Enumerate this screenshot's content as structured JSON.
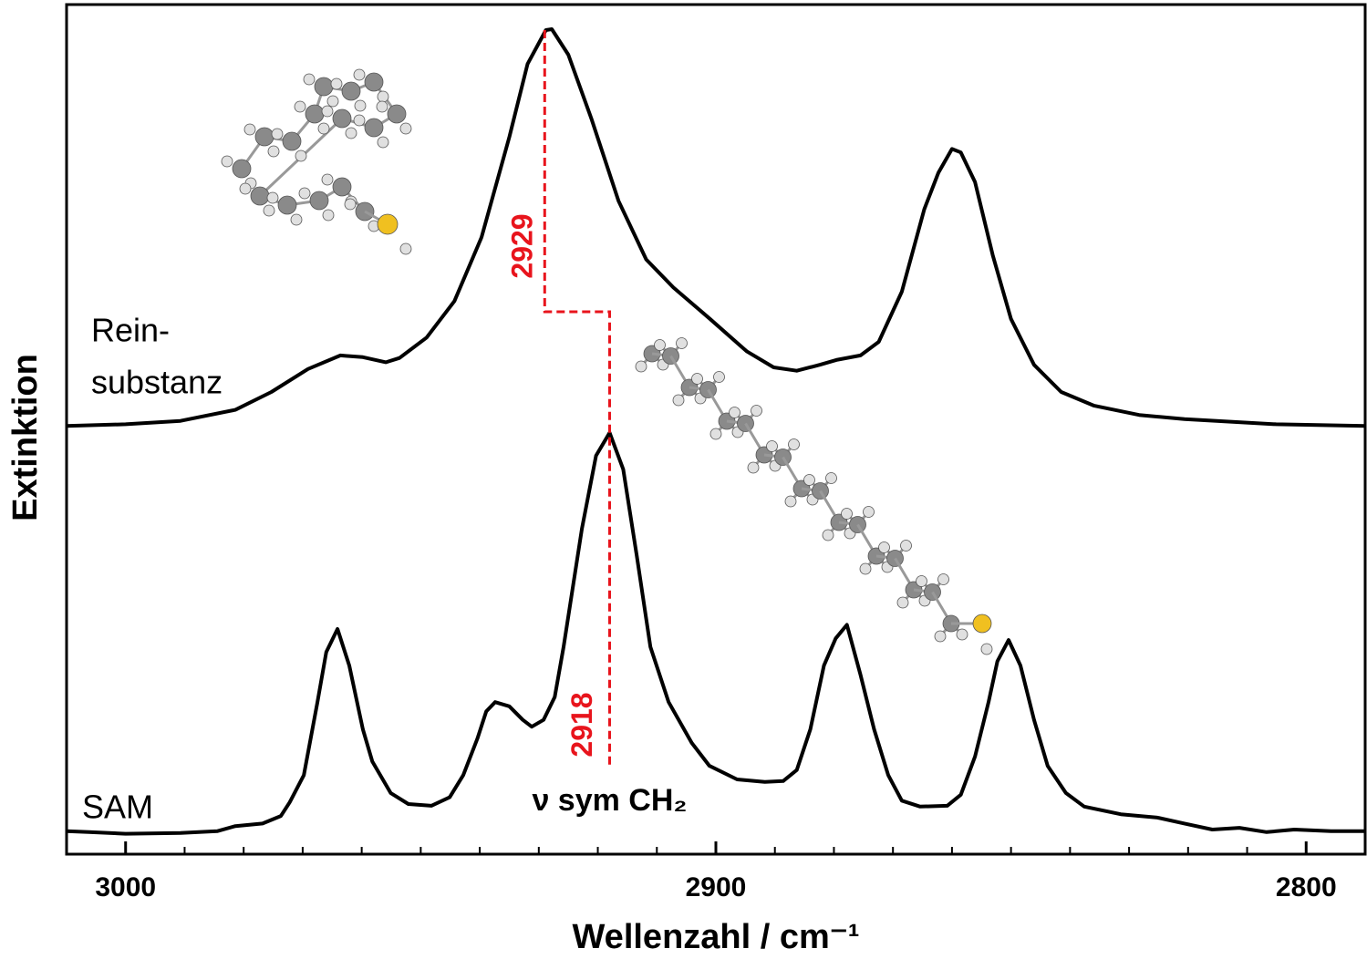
{
  "chart_data": {
    "type": "line",
    "x_label": "Wellenzahl / cm⁻¹",
    "y_label": "Extinktion",
    "xlim": [
      3010,
      2790
    ],
    "ylim": [
      0,
      100
    ],
    "xticks": [
      3000,
      2900,
      2800
    ],
    "minor_xticks": [
      2990,
      2980,
      2970,
      2960,
      2950,
      2940,
      2930,
      2920,
      2910,
      2890,
      2880,
      2870,
      2860,
      2850,
      2840,
      2830,
      2820,
      2810
    ],
    "series": [
      {
        "label": [
          "Rein-",
          "substanz"
        ],
        "color": "#000000",
        "x": [
          3010,
          3000,
          2990.7,
          2981.4,
          2975.3,
          2969.1,
          2963.6,
          2959.8,
          2955.9,
          2953.6,
          2949.0,
          2944.3,
          2939.7,
          2935.0,
          2931.9,
          2928.8,
          2927.8,
          2925.0,
          2921.1,
          2916.5,
          2911.8,
          2907.2,
          2901.0,
          2894.8,
          2890.2,
          2886.3,
          2882.4,
          2879.4,
          2875.5,
          2872.4,
          2868.5,
          2864.7,
          2862.3,
          2860.0,
          2858.5,
          2856.1,
          2853.1,
          2850.0,
          2846.1,
          2841.5,
          2836.0,
          2828.3,
          2820.6,
          2805.1,
          2790
        ],
        "values": [
          50.4,
          50.6,
          51.0,
          52.3,
          54.4,
          57.1,
          58.7,
          58.5,
          57.9,
          58.4,
          60.8,
          65.1,
          72.6,
          84.4,
          93.0,
          97.0,
          97.1,
          94.1,
          86.6,
          76.9,
          70.0,
          66.7,
          63.0,
          59.2,
          57.3,
          56.9,
          57.6,
          58.2,
          58.7,
          60.3,
          66.2,
          75.9,
          80.2,
          83.0,
          82.6,
          79.1,
          70.5,
          63.0,
          57.6,
          54.4,
          52.8,
          51.7,
          51.2,
          50.6,
          50.4
        ]
      },
      {
        "label": [
          "SAM"
        ],
        "color": "#000000",
        "x": [
          3010,
          3006.2,
          3000,
          2990.7,
          2984.5,
          2981.4,
          2976.8,
          2973.7,
          2972.2,
          2969.8,
          2967.5,
          2966.0,
          2964.1,
          2962.1,
          2959.8,
          2958.2,
          2955.1,
          2952.1,
          2948.2,
          2945.1,
          2942.8,
          2940.4,
          2938.9,
          2937.4,
          2935.0,
          2932.7,
          2931.2,
          2929.2,
          2927.3,
          2925.8,
          2922.7,
          2920.3,
          2918.0,
          2915.7,
          2913.4,
          2911.1,
          2908.0,
          2904.1,
          2901.1,
          2896.4,
          2891.7,
          2888.6,
          2886.3,
          2884.0,
          2881.7,
          2879.7,
          2877.8,
          2875.5,
          2873.2,
          2870.8,
          2868.5,
          2865.4,
          2860.8,
          2858.5,
          2856.1,
          2853.8,
          2852.3,
          2850.4,
          2848.4,
          2846.1,
          2843.8,
          2840.7,
          2837.6,
          2831.4,
          2825.2,
          2820.6,
          2815.9,
          2811.3,
          2806.7,
          2802.0,
          2795.8,
          2790
        ],
        "values": [
          2.7,
          2.6,
          2.4,
          2.5,
          2.7,
          3.3,
          3.6,
          4.5,
          6.1,
          9.3,
          17.9,
          23.8,
          26.5,
          22.2,
          14.7,
          10.9,
          7.2,
          5.9,
          5.7,
          6.7,
          9.3,
          13.6,
          16.8,
          17.9,
          17.4,
          15.8,
          15.0,
          15.8,
          18.5,
          24.4,
          38.3,
          46.9,
          49.6,
          45.3,
          35.1,
          24.4,
          17.9,
          13.1,
          10.4,
          8.8,
          8.5,
          8.6,
          9.9,
          14.7,
          22.2,
          25.4,
          27.0,
          21.1,
          14.7,
          9.3,
          6.3,
          5.6,
          5.7,
          7.0,
          11.5,
          17.9,
          22.7,
          25.2,
          22.2,
          15.8,
          10.4,
          7.2,
          5.6,
          4.7,
          4.3,
          3.6,
          2.9,
          3.1,
          2.6,
          2.9,
          2.7,
          2.7
        ]
      }
    ],
    "annotations": [
      {
        "text": "2929",
        "x": 2929
      },
      {
        "text": "2918",
        "x": 2918
      }
    ],
    "band_label": "ν sym CH₂"
  }
}
